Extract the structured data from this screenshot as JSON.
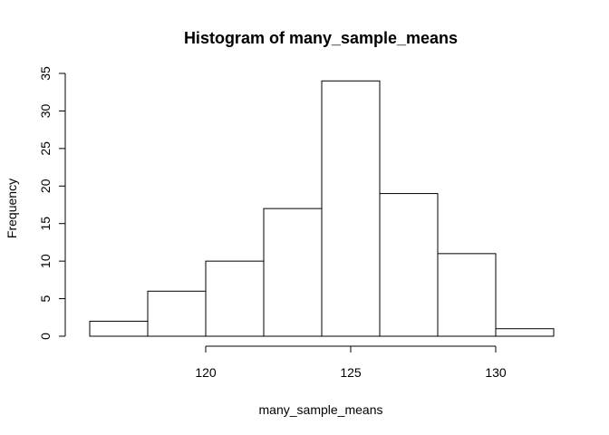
{
  "chart_data": {
    "type": "bar",
    "title": "Histogram of many_sample_means",
    "xlabel": "many_sample_means",
    "ylabel": "Frequency",
    "bins": [
      {
        "from": 116,
        "to": 118,
        "count": 2
      },
      {
        "from": 118,
        "to": 120,
        "count": 6
      },
      {
        "from": 120,
        "to": 122,
        "count": 10
      },
      {
        "from": 122,
        "to": 124,
        "count": 17
      },
      {
        "from": 124,
        "to": 126,
        "count": 34
      },
      {
        "from": 126,
        "to": 128,
        "count": 19
      },
      {
        "from": 128,
        "to": 130,
        "count": 11
      },
      {
        "from": 130,
        "to": 132,
        "count": 1
      }
    ],
    "xticks": [
      120,
      125,
      130
    ],
    "yticks": [
      0,
      5,
      10,
      15,
      20,
      25,
      30,
      35
    ],
    "xlim": [
      116,
      132
    ],
    "ylim": [
      0,
      35
    ],
    "grid": false,
    "legend": "none",
    "bar_fill": "#ffffff",
    "bar_stroke": "#000000"
  }
}
